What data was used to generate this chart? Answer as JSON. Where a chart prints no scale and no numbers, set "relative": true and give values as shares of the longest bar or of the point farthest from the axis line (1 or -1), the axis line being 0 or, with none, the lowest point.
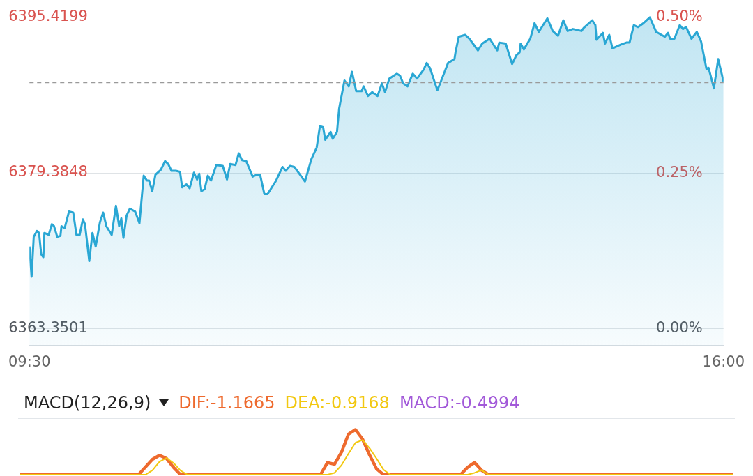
{
  "chart_data": [
    {
      "type": "area",
      "xlim": [
        9.5,
        16
      ],
      "xticks": [
        {
          "value": 9.5,
          "label": "09:30"
        },
        {
          "value": 16,
          "label": "16:00"
        }
      ],
      "ylim": [
        6361.6,
        6397.0
      ],
      "yticks": [
        6363.3501,
        6379.3848,
        6395.4199
      ],
      "y2lim": [
        -0.027,
        0.525
      ],
      "y2ticks": [
        {
          "value": 0,
          "label": "0.00%"
        },
        {
          "value": 0.25,
          "label": "0.25%"
        },
        {
          "value": 0.5,
          "label": "0.50%"
        }
      ],
      "grid": "y",
      "ref_lines": [
        {
          "axis": "y",
          "value": 6388.7,
          "color": "#9a9a9a",
          "line_style": "dashed"
        }
      ],
      "series": [
        {
          "color": "#2aa7d4",
          "x": [
            9.5,
            9.52,
            9.54,
            9.57,
            9.59,
            9.61,
            9.63,
            9.64,
            9.68,
            9.71,
            9.73,
            9.76,
            9.79,
            9.8,
            9.83,
            9.87,
            9.91,
            9.94,
            9.97,
            10.0,
            10.02,
            10.06,
            10.09,
            10.12,
            10.16,
            10.19,
            10.22,
            10.27,
            10.31,
            10.34,
            10.36,
            10.38,
            10.41,
            10.44,
            10.49,
            10.53,
            10.57,
            10.6,
            10.62,
            10.65,
            10.68,
            10.73,
            10.77,
            10.8,
            10.83,
            10.87,
            10.91,
            10.93,
            10.97,
            11.0,
            11.04,
            11.07,
            11.09,
            11.11,
            11.14,
            11.17,
            11.2,
            11.25,
            11.31,
            11.35,
            11.38,
            11.43,
            11.46,
            11.49,
            11.53,
            11.59,
            11.63,
            11.66,
            11.7,
            11.73,
            11.77,
            11.81,
            11.84,
            11.87,
            11.9,
            11.94,
            11.98,
            12.04,
            12.08,
            12.14,
            12.19,
            12.22,
            12.25,
            12.27,
            12.32,
            12.34,
            12.38,
            12.4,
            12.45,
            12.49,
            12.52,
            12.56,
            12.61,
            12.63,
            12.67,
            12.71,
            12.76,
            12.8,
            12.83,
            12.87,
            12.94,
            12.97,
            13.0,
            13.04,
            13.09,
            13.13,
            13.19,
            13.22,
            13.25,
            13.32,
            13.36,
            13.42,
            13.48,
            13.49,
            13.52,
            13.58,
            13.62,
            13.7,
            13.74,
            13.81,
            13.88,
            13.9,
            13.96,
            14.02,
            14.06,
            14.09,
            14.1,
            14.13,
            14.19,
            14.23,
            14.27,
            14.35,
            14.4,
            14.45,
            14.5,
            14.54,
            14.59,
            14.67,
            14.69,
            14.77,
            14.8,
            14.81,
            14.87,
            14.89,
            14.93,
            14.96,
            15.04,
            15.09,
            15.12,
            15.16,
            15.2,
            15.25,
            15.31,
            15.37,
            15.45,
            15.48,
            15.5,
            15.54,
            15.59,
            15.62,
            15.65,
            15.7,
            15.75,
            15.79,
            15.84,
            15.86,
            15.91,
            15.95,
            16.0
          ],
          "values": [
            6371.8,
            6368.7,
            6372.8,
            6373.4,
            6373.2,
            6371.0,
            6370.7,
            6373.2,
            6373.0,
            6374.1,
            6373.9,
            6372.8,
            6372.9,
            6373.9,
            6373.7,
            6375.4,
            6375.3,
            6373.0,
            6373.0,
            6374.6,
            6374.1,
            6370.3,
            6373.2,
            6371.8,
            6374.3,
            6375.3,
            6373.9,
            6373.0,
            6376.0,
            6373.9,
            6374.7,
            6372.7,
            6375.0,
            6375.7,
            6375.4,
            6374.2,
            6379.1,
            6378.6,
            6378.6,
            6377.5,
            6379.2,
            6379.7,
            6380.6,
            6380.3,
            6379.6,
            6379.6,
            6379.5,
            6377.9,
            6378.2,
            6377.8,
            6379.4,
            6378.7,
            6379.3,
            6377.5,
            6377.7,
            6379.1,
            6378.6,
            6380.2,
            6380.1,
            6378.7,
            6380.3,
            6380.2,
            6381.4,
            6380.7,
            6380.6,
            6379.0,
            6379.2,
            6379.2,
            6377.2,
            6377.2,
            6377.9,
            6378.6,
            6379.3,
            6380.0,
            6379.6,
            6380.1,
            6380.0,
            6379.1,
            6378.5,
            6380.8,
            6382.0,
            6384.2,
            6384.1,
            6382.8,
            6383.6,
            6382.9,
            6383.6,
            6386.0,
            6388.9,
            6388.3,
            6389.8,
            6387.8,
            6387.8,
            6388.3,
            6387.3,
            6387.7,
            6387.3,
            6388.6,
            6387.7,
            6389.1,
            6389.6,
            6389.4,
            6388.6,
            6388.3,
            6389.6,
            6389.1,
            6390.0,
            6390.7,
            6390.2,
            6387.9,
            6389.0,
            6390.7,
            6391.1,
            6391.8,
            6393.4,
            6393.6,
            6393.2,
            6392.0,
            6392.7,
            6393.2,
            6392.0,
            6392.8,
            6392.7,
            6390.6,
            6391.5,
            6391.8,
            6392.7,
            6392.1,
            6393.2,
            6394.8,
            6393.9,
            6395.3,
            6394.0,
            6393.5,
            6395.1,
            6394.0,
            6394.2,
            6394.0,
            6394.3,
            6395.1,
            6394.6,
            6393.1,
            6393.8,
            6392.7,
            6393.6,
            6392.2,
            6392.6,
            6392.8,
            6392.8,
            6394.6,
            6394.4,
            6394.8,
            6395.4,
            6393.9,
            6393.4,
            6393.8,
            6393.2,
            6393.2,
            6394.6,
            6394.2,
            6394.4,
            6393.2,
            6393.9,
            6392.9,
            6390.1,
            6390.2,
            6388.1,
            6391.1,
            6388.8
          ]
        }
      ]
    },
    {
      "type": "line",
      "title": "MACD(12,26,9)",
      "relative": true,
      "annotations": [
        "MACD:-0.4994"
      ],
      "categories": [
        null,
        null,
        null,
        null,
        null,
        null,
        null,
        null,
        null,
        null,
        null,
        null,
        null,
        null,
        null,
        null,
        null,
        null,
        null,
        null,
        null,
        null,
        null,
        null,
        null,
        null,
        null,
        null,
        null,
        null,
        null,
        null,
        null,
        null,
        null,
        null,
        null,
        null,
        null,
        null,
        null,
        null,
        null,
        null,
        null,
        null,
        null,
        null,
        null,
        null,
        null,
        null,
        null,
        null,
        null,
        null,
        null,
        null,
        null,
        null,
        null,
        null,
        null,
        null,
        null,
        null,
        null,
        null,
        null,
        null,
        null,
        null,
        null,
        null,
        null,
        null,
        null,
        null,
        null,
        null,
        null,
        null,
        null,
        null,
        null,
        null,
        null,
        null,
        null,
        null,
        null,
        null,
        null,
        null,
        null,
        null,
        null,
        null,
        null,
        null,
        null,
        null,
        null
      ],
      "series": [
        {
          "name": "DIF:-1.1665",
          "color": "#ee6a2e",
          "values": [
            0,
            0,
            0,
            0,
            0,
            0,
            0,
            0,
            0,
            0,
            0,
            0,
            0,
            0,
            0,
            0,
            0,
            0,
            0.17,
            0.34,
            0.43,
            0.36,
            0.16,
            0,
            0,
            0,
            0,
            0,
            0,
            0,
            0,
            0,
            0,
            0,
            0,
            0,
            0,
            0,
            0,
            0,
            0,
            0,
            0,
            0,
            0.27,
            0.23,
            0.5,
            0.9,
            1,
            0.79,
            0.44,
            0.13,
            0,
            0,
            0,
            0,
            0,
            0,
            0,
            0,
            0,
            0,
            0,
            0,
            0.16,
            0.27,
            0.1,
            0,
            0,
            0,
            0,
            0,
            0,
            0,
            0,
            0,
            0,
            0,
            0,
            0,
            0,
            0,
            0,
            0,
            0,
            0,
            0,
            0,
            0,
            0,
            0,
            0,
            0,
            0,
            0,
            0,
            0,
            0,
            0,
            0,
            0,
            0,
            0
          ]
        },
        {
          "name": "DEA:-0.9168",
          "color": "#f2c811",
          "values": [
            0,
            0,
            0,
            0,
            0,
            0,
            0,
            0,
            0,
            0,
            0,
            0,
            0,
            0,
            0,
            0,
            0,
            0,
            0,
            0.1,
            0.29,
            0.37,
            0.26,
            0.09,
            0,
            0,
            0,
            0,
            0,
            0,
            0,
            0,
            0,
            0,
            0,
            0,
            0,
            0,
            0,
            0,
            0,
            0,
            0,
            0,
            0,
            0.04,
            0.21,
            0.47,
            0.71,
            0.77,
            0.59,
            0.36,
            0.11,
            0,
            0,
            0,
            0,
            0,
            0,
            0,
            0,
            0,
            0,
            0,
            0,
            0.04,
            0.1,
            0,
            0,
            0,
            0,
            0,
            0,
            0,
            0,
            0,
            0,
            0,
            0,
            0,
            0,
            0,
            0,
            0,
            0,
            0,
            0,
            0,
            0,
            0,
            0,
            0,
            0,
            0,
            0,
            0,
            0,
            0,
            0,
            0,
            0,
            0,
            0
          ]
        }
      ]
    }
  ]
}
